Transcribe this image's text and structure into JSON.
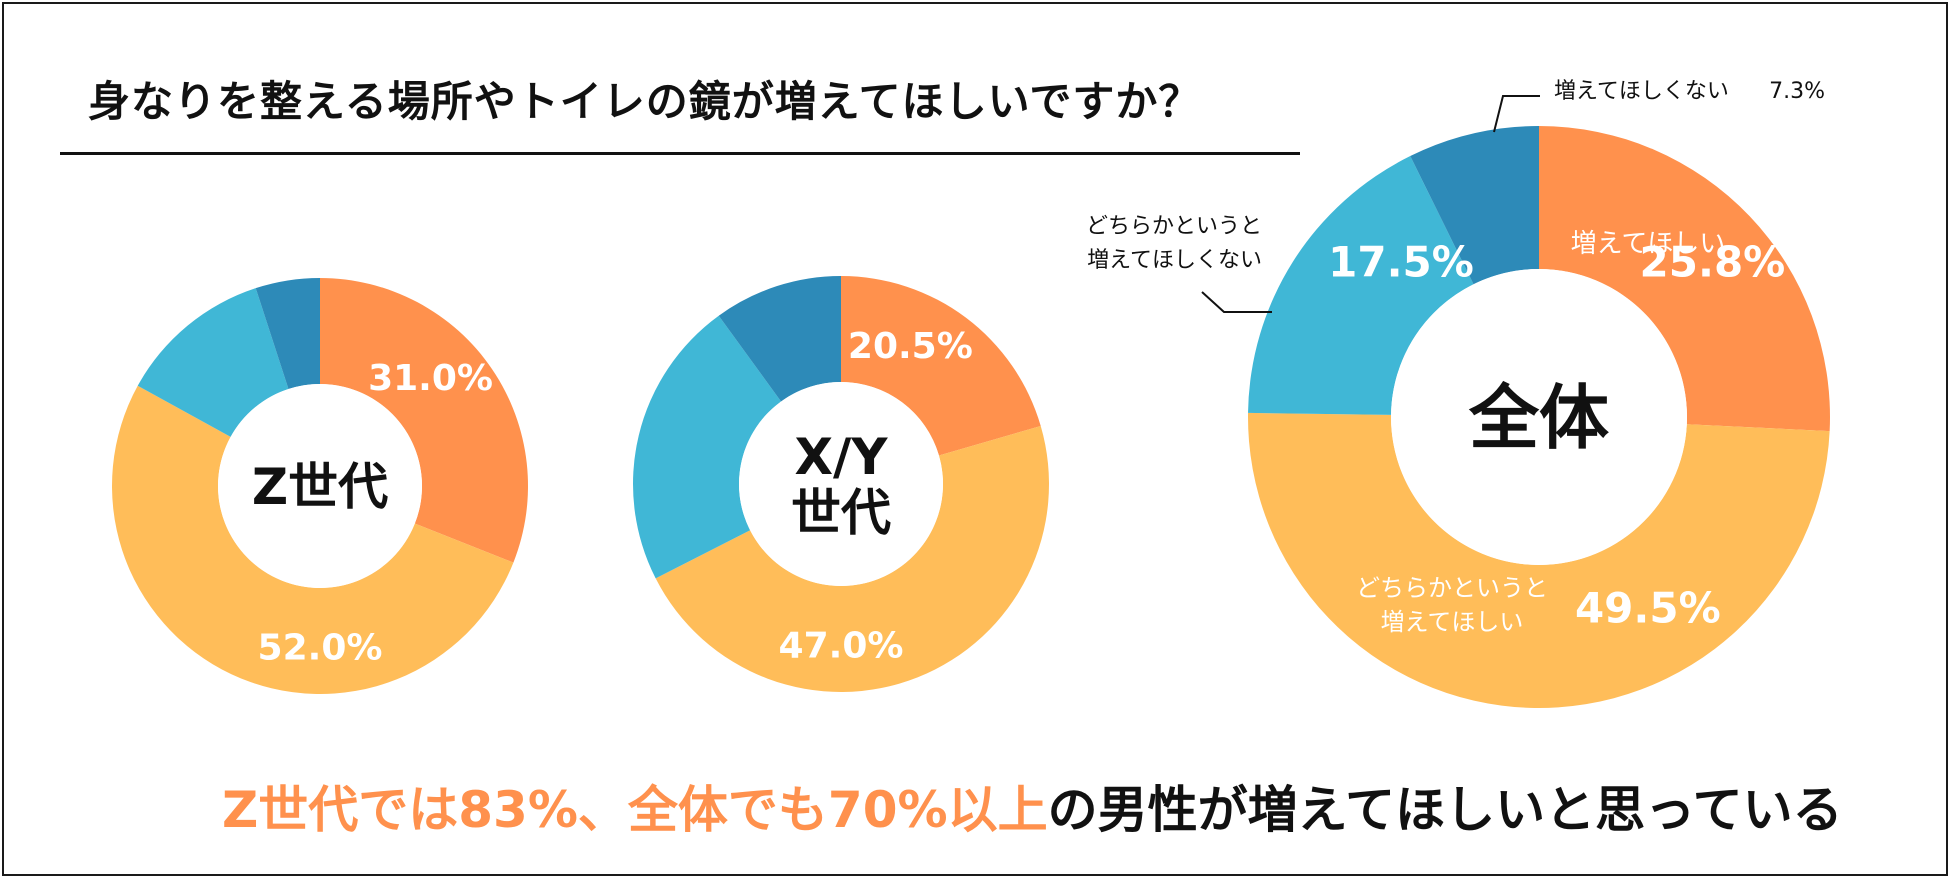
{
  "title": "身なりを整える場所やトイレの鏡が増えてほしいですか？",
  "summary": {
    "highlight": "Z世代では83%、全体でも70%以上",
    "rest": "の男性が増えてほしいと思っている"
  },
  "colors": {
    "want": "#ff914d",
    "somewhat_want": "#ffbd59",
    "somewhat_not": "#40b7d6",
    "not_want": "#2d8ab8",
    "center_text": "#111111",
    "label_white": "#ffffff",
    "leader_line": "#111111"
  },
  "chart_data": [
    {
      "type": "pie",
      "variant": "donut",
      "center_label": [
        "Z世代"
      ],
      "categories": [
        "増えてほしい",
        "どちらかというと増えてほしい",
        "どちらかというと増えてほしくない",
        "増えてほしくない"
      ],
      "values": [
        31.0,
        52.0,
        12.0,
        5.0
      ],
      "value_labels": [
        "31.0%",
        "52.0%",
        null,
        null
      ]
    },
    {
      "type": "pie",
      "variant": "donut",
      "center_label": [
        "X/Y",
        "世代"
      ],
      "categories": [
        "増えてほしい",
        "どちらかというと増えてほしい",
        "どちらかというと増えてほしくない",
        "増えてほしくない"
      ],
      "values": [
        20.5,
        47.0,
        22.5,
        10.0
      ],
      "value_labels": [
        "20.5%",
        "47.0%",
        null,
        null
      ]
    },
    {
      "type": "pie",
      "variant": "donut",
      "center_label": [
        "全体"
      ],
      "categories": [
        "増えてほしい",
        "どちらかというと増えてほしい",
        "どちらかというと増えてほしくない",
        "増えてほしくない"
      ],
      "values": [
        25.8,
        49.5,
        17.5,
        7.3
      ],
      "value_labels": [
        "25.8%",
        "49.5%",
        "17.5%",
        "7.3%"
      ],
      "category_labels": {
        "want": "増えてほしい",
        "somewhat_want": [
          "どちらかというと",
          "増えてほしい"
        ],
        "somewhat_not": [
          "どちらかというと",
          "増えてほしくない"
        ],
        "not_want": "増えてほしくない"
      }
    }
  ]
}
